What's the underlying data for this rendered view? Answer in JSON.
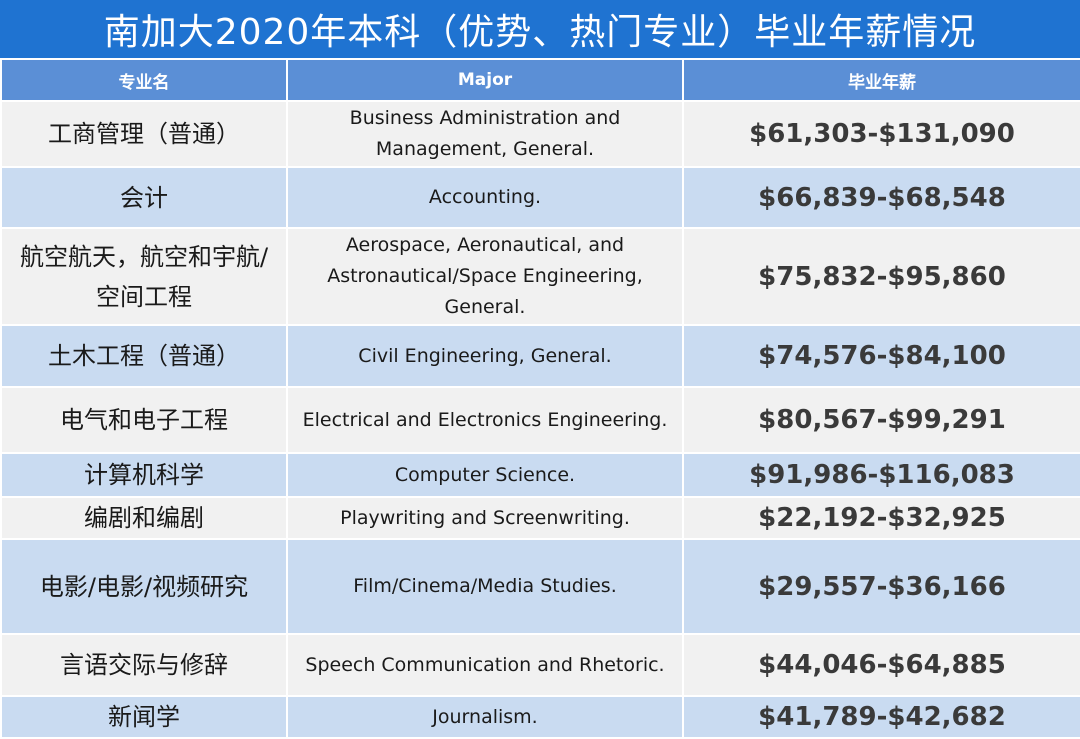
{
  "title": "南加大2020年本科（优势、热门专业）毕业年薪情况",
  "headers": {
    "cn_name": "专业名",
    "major": "Major",
    "salary": "毕业年薪"
  },
  "rows": [
    {
      "cn": "工商管理（普通）",
      "en": "Business Administration and Management, General.",
      "salary": "$61,303-$131,090"
    },
    {
      "cn": "会计",
      "en": "Accounting.",
      "salary": "$66,839-$68,548"
    },
    {
      "cn": "航空航天，航空和宇航/空间工程",
      "en": "Aerospace, Aeronautical, and Astronautical/Space Engineering, General.",
      "salary": "$75,832-$95,860"
    },
    {
      "cn": "土木工程（普通）",
      "en": "Civil Engineering, General.",
      "salary": "$74,576-$84,100"
    },
    {
      "cn": "电气和电子工程",
      "en": "Electrical and Electronics Engineering.",
      "salary": "$80,567-$99,291"
    },
    {
      "cn": "计算机科学",
      "en": "Computer Science.",
      "salary": "$91,986-$116,083"
    },
    {
      "cn": "编剧和编剧",
      "en": "Playwriting and Screenwriting.",
      "salary": "$22,192-$32,925"
    },
    {
      "cn": "电影/电影/视频研究",
      "en": "Film/Cinema/Media Studies.",
      "salary": "$29,557-$36,166"
    },
    {
      "cn": "言语交际与修辞",
      "en": "Speech Communication and Rhetoric.",
      "salary": "$44,046-$64,885"
    },
    {
      "cn": "新闻学",
      "en": "Journalism.",
      "salary": "$41,789-$42,682"
    }
  ]
}
